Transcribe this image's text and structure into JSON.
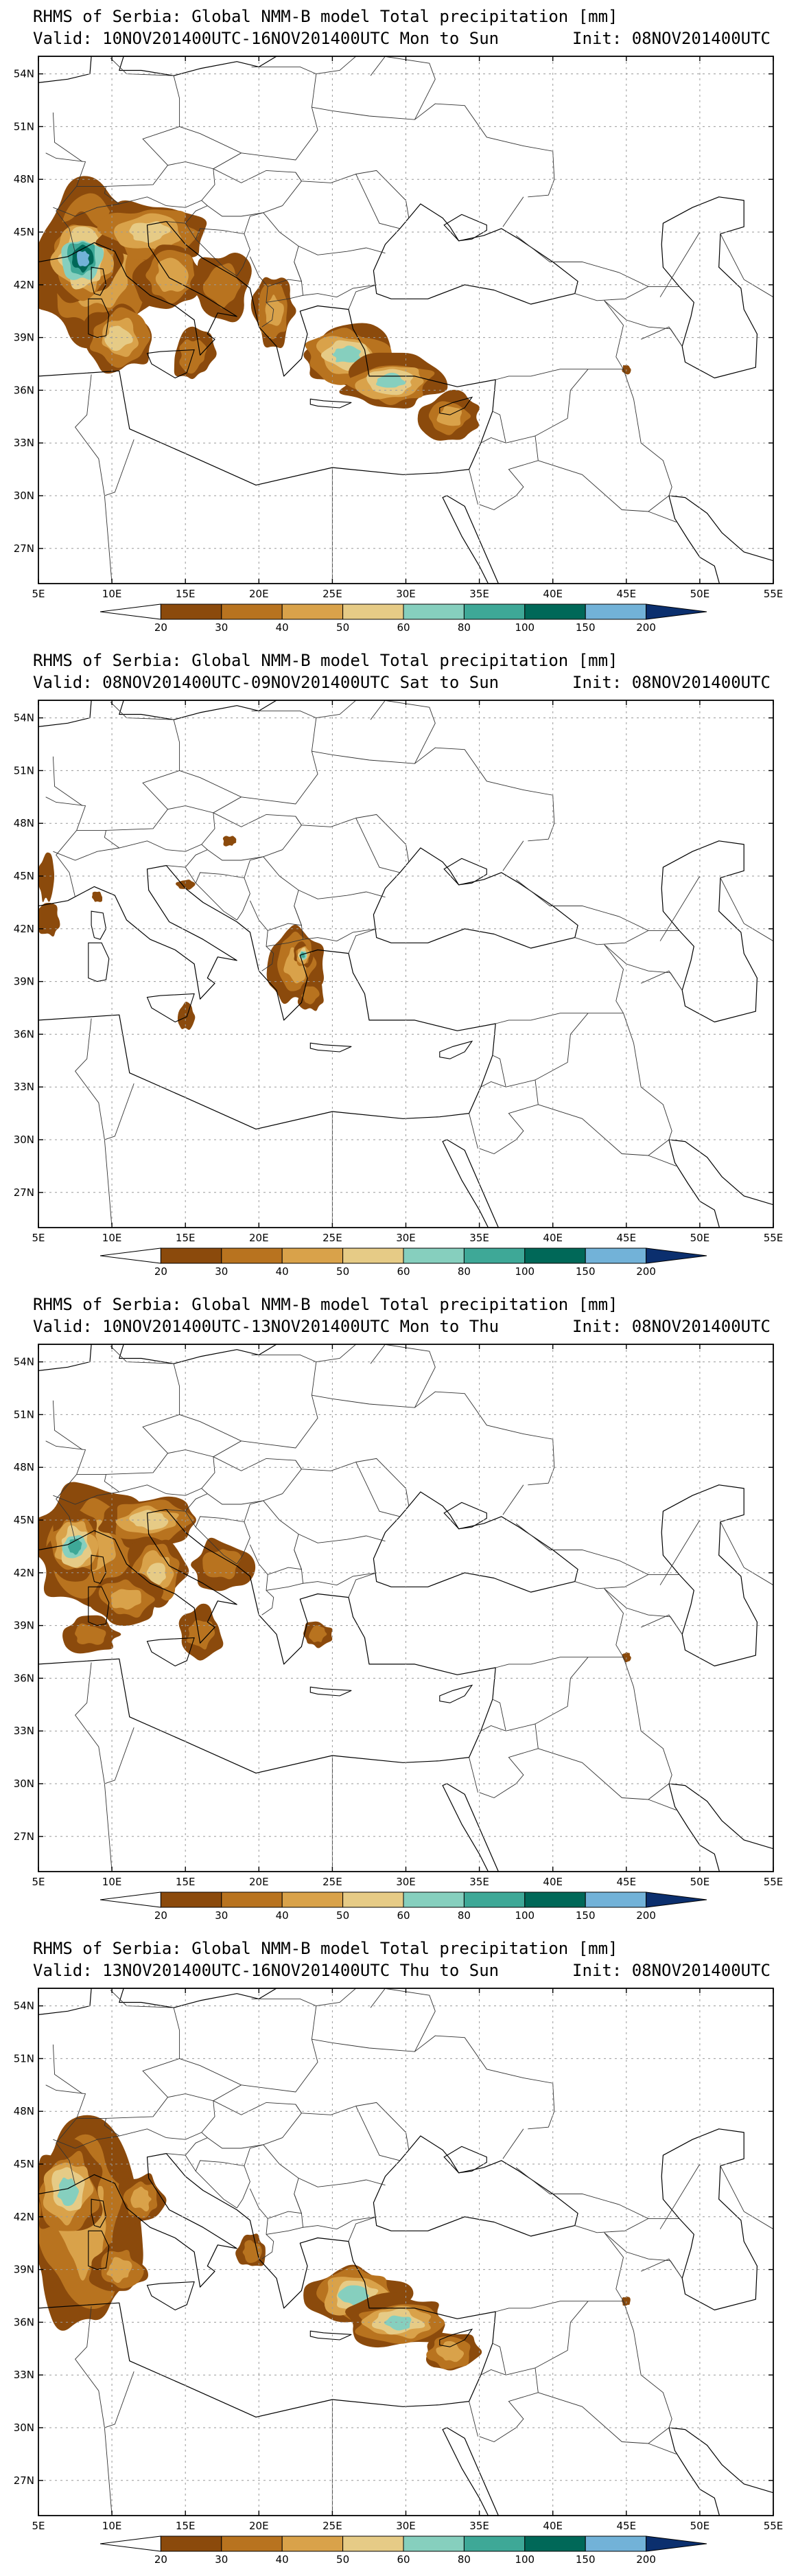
{
  "panels": [
    {
      "title": "RHMS of Serbia: Global NMM-B model Total precipitation [mm]",
      "valid": "Valid: 10NOV201400UTC-16NOV201400UTC Mon to Sun",
      "init": "Init: 08NOV201400UTC",
      "rain": [
        {
          "lon": 9.0,
          "lat": 43.0,
          "rx": 4.5,
          "ry": 5.0,
          "level": 3
        },
        {
          "lon": 8.0,
          "lat": 43.5,
          "rx": 2.5,
          "ry": 2.5,
          "level": 8
        },
        {
          "lon": 12.5,
          "lat": 45.0,
          "rx": 4.0,
          "ry": 1.8,
          "level": 4
        },
        {
          "lon": 14.0,
          "lat": 42.5,
          "rx": 2.5,
          "ry": 2.0,
          "level": 3
        },
        {
          "lon": 10.5,
          "lat": 39.0,
          "rx": 2.5,
          "ry": 2.0,
          "level": 4
        },
        {
          "lon": 15.5,
          "lat": 38.0,
          "rx": 1.5,
          "ry": 1.5,
          "level": 2
        },
        {
          "lon": 17.5,
          "lat": 42.0,
          "rx": 2.0,
          "ry": 2.0,
          "level": 2
        },
        {
          "lon": 21.0,
          "lat": 40.5,
          "rx": 1.5,
          "ry": 2.0,
          "level": 3
        },
        {
          "lon": 26.0,
          "lat": 38.0,
          "rx": 3.5,
          "ry": 1.8,
          "level": 5
        },
        {
          "lon": 29.0,
          "lat": 36.5,
          "rx": 3.5,
          "ry": 1.5,
          "level": 5
        },
        {
          "lon": 33.0,
          "lat": 34.5,
          "rx": 2.0,
          "ry": 1.3,
          "level": 3
        },
        {
          "lon": 45.0,
          "lat": 37.2,
          "rx": 0.3,
          "ry": 0.3,
          "level": 1
        }
      ]
    },
    {
      "title": "RHMS of Serbia: Global NMM-B model Total precipitation [mm]",
      "valid": "Valid: 08NOV201400UTC-09NOV201400UTC Sat to Sun",
      "init": "Init: 08NOV201400UTC",
      "rain": [
        {
          "lon": 22.5,
          "lat": 40.0,
          "rx": 1.8,
          "ry": 2.3,
          "level": 3
        },
        {
          "lon": 23.0,
          "lat": 40.5,
          "rx": 0.6,
          "ry": 0.7,
          "level": 6
        },
        {
          "lon": 23.5,
          "lat": 38.2,
          "rx": 0.9,
          "ry": 0.9,
          "level": 2
        },
        {
          "lon": 5.5,
          "lat": 45.0,
          "rx": 0.5,
          "ry": 1.5,
          "level": 1
        },
        {
          "lon": 5.7,
          "lat": 42.5,
          "rx": 0.8,
          "ry": 1.0,
          "level": 1
        },
        {
          "lon": 15.0,
          "lat": 37.0,
          "rx": 0.6,
          "ry": 0.8,
          "level": 1
        },
        {
          "lon": 18.0,
          "lat": 47.0,
          "rx": 0.5,
          "ry": 0.3,
          "level": 1
        },
        {
          "lon": 15.0,
          "lat": 44.5,
          "rx": 0.6,
          "ry": 0.3,
          "level": 1
        },
        {
          "lon": 9.0,
          "lat": 43.8,
          "rx": 0.4,
          "ry": 0.3,
          "level": 1
        }
      ]
    },
    {
      "title": "RHMS of Serbia: Global NMM-B model Total precipitation [mm]",
      "valid": "Valid: 10NOV201400UTC-13NOV201400UTC Mon to Thu",
      "init": "Init: 08NOV201400UTC",
      "rain": [
        {
          "lon": 8.5,
          "lat": 43.5,
          "rx": 4.0,
          "ry": 3.5,
          "level": 3
        },
        {
          "lon": 7.5,
          "lat": 43.5,
          "rx": 2.0,
          "ry": 2.0,
          "level": 6
        },
        {
          "lon": 12.5,
          "lat": 45.0,
          "rx": 3.5,
          "ry": 1.5,
          "level": 4
        },
        {
          "lon": 13.0,
          "lat": 42.0,
          "rx": 2.0,
          "ry": 2.0,
          "level": 4
        },
        {
          "lon": 11.0,
          "lat": 40.5,
          "rx": 2.5,
          "ry": 1.5,
          "level": 3
        },
        {
          "lon": 8.5,
          "lat": 38.5,
          "rx": 2.0,
          "ry": 1.0,
          "level": 2
        },
        {
          "lon": 16.0,
          "lat": 38.5,
          "rx": 1.5,
          "ry": 1.5,
          "level": 2
        },
        {
          "lon": 17.5,
          "lat": 42.5,
          "rx": 2.0,
          "ry": 1.5,
          "level": 2
        },
        {
          "lon": 24.0,
          "lat": 38.5,
          "rx": 1.0,
          "ry": 0.8,
          "level": 2
        },
        {
          "lon": 45.0,
          "lat": 37.2,
          "rx": 0.3,
          "ry": 0.3,
          "level": 1
        }
      ]
    },
    {
      "title": "RHMS of Serbia: Global NMM-B model Total precipitation [mm]",
      "valid": "Valid: 13NOV201400UTC-16NOV201400UTC Thu to Sun",
      "init": "Init: 08NOV201400UTC",
      "rain": [
        {
          "lon": 8.0,
          "lat": 41.5,
          "rx": 4.0,
          "ry": 6.5,
          "level": 3
        },
        {
          "lon": 7.0,
          "lat": 43.5,
          "rx": 2.5,
          "ry": 2.8,
          "level": 5
        },
        {
          "lon": 10.5,
          "lat": 39.0,
          "rx": 2.0,
          "ry": 1.5,
          "level": 3
        },
        {
          "lon": 12.0,
          "lat": 43.0,
          "rx": 1.5,
          "ry": 1.5,
          "level": 3
        },
        {
          "lon": 19.5,
          "lat": 40.0,
          "rx": 1.0,
          "ry": 1.0,
          "level": 2
        },
        {
          "lon": 26.5,
          "lat": 37.5,
          "rx": 3.5,
          "ry": 1.8,
          "level": 5
        },
        {
          "lon": 29.5,
          "lat": 36.0,
          "rx": 3.5,
          "ry": 1.5,
          "level": 5
        },
        {
          "lon": 33.0,
          "lat": 34.3,
          "rx": 2.0,
          "ry": 1.3,
          "level": 3
        },
        {
          "lon": 45.0,
          "lat": 37.2,
          "rx": 0.3,
          "ry": 0.3,
          "level": 1
        }
      ]
    }
  ],
  "axis": {
    "lon_min": 5,
    "lon_max": 55,
    "lat_min": 25,
    "lat_max": 55,
    "lon_ticks": [
      "5E",
      "10E",
      "15E",
      "20E",
      "25E",
      "30E",
      "35E",
      "40E",
      "45E",
      "50E",
      "55E"
    ],
    "lat_ticks": [
      "54N",
      "51N",
      "48N",
      "45N",
      "42N",
      "39N",
      "36N",
      "33N",
      "30N",
      "27N"
    ],
    "lat_values": [
      54,
      51,
      48,
      45,
      42,
      39,
      36,
      33,
      30,
      27
    ],
    "lon_values": [
      5,
      10,
      15,
      20,
      25,
      30,
      35,
      40,
      45,
      50,
      55
    ]
  },
  "colorbar": {
    "labels": [
      "20",
      "30",
      "40",
      "50",
      "60",
      "80",
      "100",
      "150",
      "200"
    ],
    "colors": [
      "#8b4a0c",
      "#b8731f",
      "#d9a24a",
      "#e6cb86",
      "#86cfbe",
      "#3ea897",
      "#006858",
      "#72b2d8",
      "#2f6aa8"
    ]
  }
}
